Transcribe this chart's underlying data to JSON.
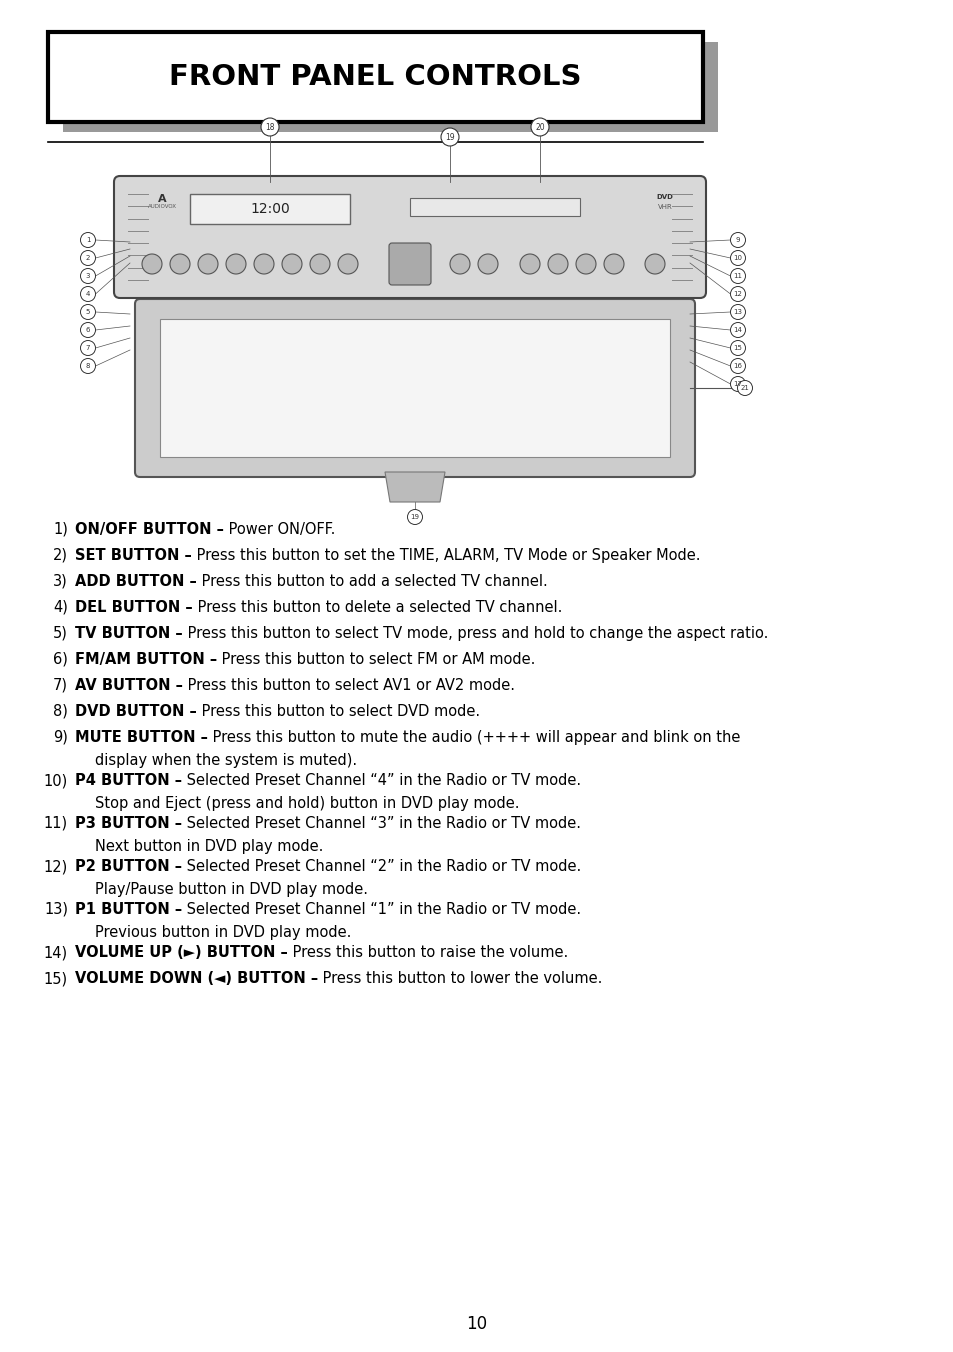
{
  "title": "FRONT PANEL CONTROLS",
  "page_number": "10",
  "background_color": "#ffffff",
  "items": [
    {
      "num": "1)",
      "bold": "ON/OFF BUTTON –",
      "normal": " Power ON/OFF.",
      "continuation": null
    },
    {
      "num": "2)",
      "bold": "SET BUTTON –",
      "normal": " Press this button to set the TIME, ALARM, TV Mode or Speaker Mode.",
      "continuation": null
    },
    {
      "num": "3)",
      "bold": "ADD BUTTON –",
      "normal": " Press this button to add a selected TV channel.",
      "continuation": null
    },
    {
      "num": "4)",
      "bold": "DEL BUTTON –",
      "normal": " Press this button to delete a selected TV channel.",
      "continuation": null
    },
    {
      "num": "5)",
      "bold": "TV BUTTON –",
      "normal": " Press this button to select TV mode, press and hold to change the aspect ratio.",
      "continuation": null
    },
    {
      "num": "6)",
      "bold": "FM/AM BUTTON –",
      "normal": " Press this button to select FM or AM mode.",
      "continuation": null
    },
    {
      "num": "7)",
      "bold": "AV BUTTON –",
      "normal": " Press this button to select AV1 or AV2 mode.",
      "continuation": null
    },
    {
      "num": "8)",
      "bold": "DVD BUTTON –",
      "normal": " Press this button to select DVD mode.",
      "continuation": null
    },
    {
      "num": "9)",
      "bold": "MUTE BUTTON –",
      "normal": " Press this button to mute the audio (++++ will appear and blink on the",
      "continuation": "display when the system is muted)."
    },
    {
      "num": "10)",
      "bold": "P4 BUTTON –",
      "normal": " Selected Preset Channel “4” in the Radio or TV mode.",
      "continuation": "Stop and Eject (press and hold) button in DVD play mode."
    },
    {
      "num": "11)",
      "bold": "P3 BUTTON –",
      "normal": " Selected Preset Channel “3” in the Radio or TV mode.",
      "continuation": "Next button in DVD play mode."
    },
    {
      "num": "12)",
      "bold": "P2 BUTTON –",
      "normal": " Selected Preset Channel “2” in the Radio or TV mode.",
      "continuation": "Play/Pause button in DVD play mode."
    },
    {
      "num": "13)",
      "bold": "P1 BUTTON –",
      "normal": " Selected Preset Channel “1” in the Radio or TV mode.",
      "continuation": "Previous button in DVD play mode."
    },
    {
      "num": "14)",
      "bold": "VOLUME UP (►) BUTTON –",
      "normal": " Press this button to raise the volume.",
      "continuation": null
    },
    {
      "num": "15)",
      "bold": "VOLUME DOWN (◄) BUTTON –",
      "normal": " Press this button to lower the volume.",
      "continuation": null
    }
  ]
}
